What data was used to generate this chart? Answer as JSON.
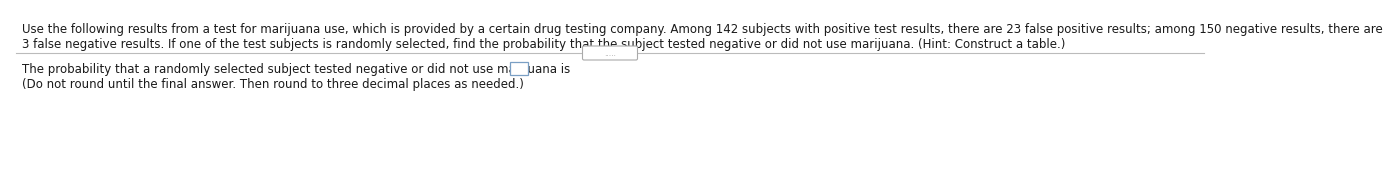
{
  "line1": "Use the following results from a test for marijuana use, which is provided by a certain drug testing company. Among 142 subjects with positive test results, there are 23 false positive results; among 150 negative results, there are",
  "line2": "3 false negative results. If one of the test subjects is randomly selected, find the probability that the subject tested negative or did not use marijuana. (Hint: Construct a table.)",
  "divider_label": ".....",
  "answer_line1": "The probability that a randomly selected subject tested negative or did not use marijuana is",
  "answer_line2": "(Do not round until the final answer. Then round to three decimal places as needed.)",
  "bg_color": "#ffffff",
  "text_color": "#1a1a1a",
  "font_size": 8.5,
  "divider_color": "#bbbbbb",
  "btn_border_color": "#aaaaaa",
  "box_border_color": "#7a9fc4"
}
